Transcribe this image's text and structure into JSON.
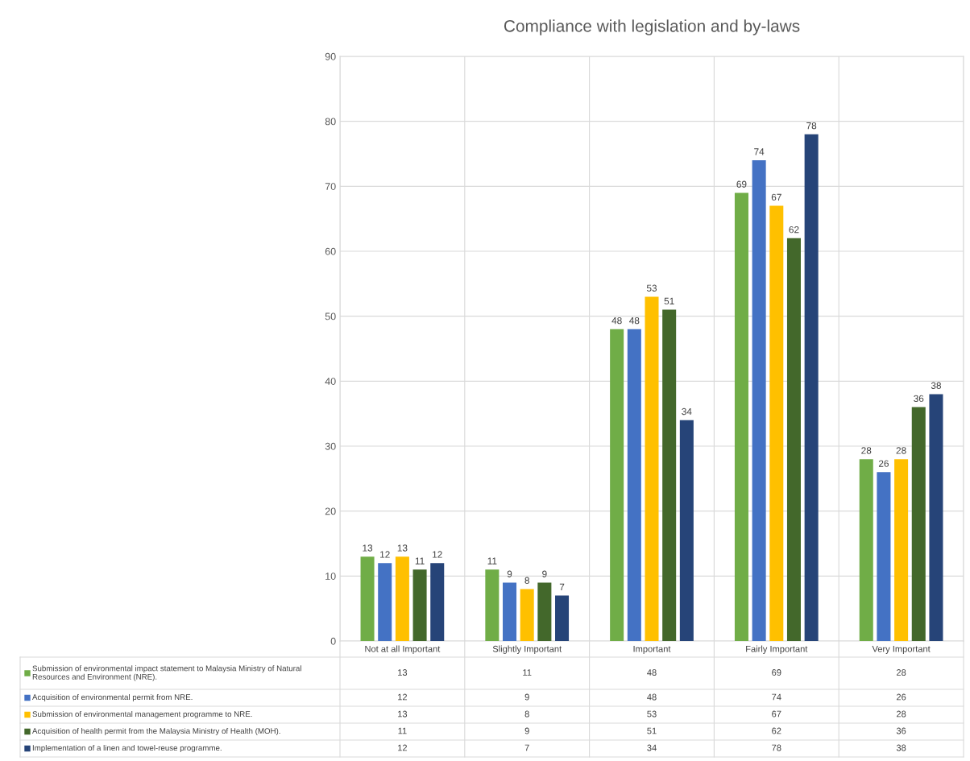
{
  "chart_data": {
    "type": "bar",
    "title": "Compliance with legislation and by-laws",
    "categories": [
      "Not at all Important",
      "Slightly Important",
      "Important",
      "Fairly Important",
      "Very Important"
    ],
    "series": [
      {
        "name": "Submission of environmental impact statement to Malaysia Ministry of Natural Resources and Environment (NRE).",
        "color": "#70ad47",
        "values": [
          13,
          11,
          48,
          69,
          28
        ]
      },
      {
        "name": "Acquisition of environmental permit from NRE.",
        "color": "#4472c4",
        "values": [
          12,
          9,
          48,
          74,
          26
        ]
      },
      {
        "name": "Submission of environmental management programme to NRE.",
        "color": "#ffc000",
        "values": [
          13,
          8,
          53,
          67,
          28
        ]
      },
      {
        "name": "Acquisition of health permit from the Malaysia Ministry of Health (MOH).",
        "color": "#43682b",
        "values": [
          11,
          9,
          51,
          62,
          36
        ]
      },
      {
        "name": "Implementation of a linen and towel-reuse programme.",
        "color": "#264478",
        "values": [
          12,
          7,
          34,
          78,
          38
        ]
      }
    ],
    "ylim": [
      0,
      90
    ],
    "yticks": [
      0,
      10,
      20,
      30,
      40,
      50,
      60,
      70,
      80,
      90
    ],
    "value_labels": [
      [
        "13",
        "11",
        "48",
        "69",
        "28"
      ],
      [
        "12",
        "9",
        "48",
        "74",
        "26"
      ],
      [
        "13",
        "8",
        "53",
        "67",
        "28"
      ],
      [
        "11",
        "9",
        "51",
        "62",
        "36"
      ],
      [
        "12",
        "7",
        "34",
        "78",
        "38"
      ]
    ],
    "grid": true,
    "legend": "bottom",
    "data_labels": true
  }
}
